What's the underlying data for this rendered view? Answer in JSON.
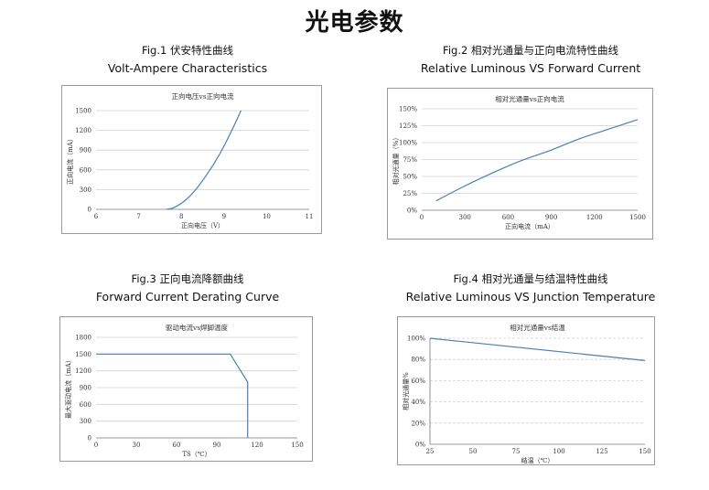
{
  "page": {
    "title": "光电参数"
  },
  "figures": [
    {
      "caption": "Fig.1  伏安特性曲线",
      "subtitle": "Volt-Ampere Characteristics"
    },
    {
      "caption": "Fig.2  相对光通量与正向电流特性曲线",
      "subtitle": "Relative Luminous VS Forward Current"
    },
    {
      "caption": "Fig.3  正向电流降额曲线",
      "subtitle": "Forward Current Derating Curve"
    },
    {
      "caption": "Fig.4  相对光通量与结温特性曲线",
      "subtitle": "Relative Luminous VS Junction Temperature"
    }
  ],
  "colors": {
    "series": "#4a7fb5",
    "grid": "#d0d0d0",
    "axis": "#777777",
    "frame": "#9a9a9a"
  },
  "chart_data": [
    {
      "type": "line",
      "title": "正向电压vs正向电流",
      "xlabel": "正向电压（V）",
      "ylabel": "正向电流（mA）",
      "xlim": [
        6,
        11
      ],
      "ylim": [
        0,
        1500
      ],
      "x_ticks": [
        6,
        7,
        8,
        9,
        10,
        11
      ],
      "y_ticks": [
        0,
        300,
        600,
        900,
        1200,
        1500
      ],
      "grid": "horizontal",
      "series": [
        {
          "x": [
            7.65,
            7.8,
            8.0,
            8.2,
            8.4,
            8.6,
            8.8,
            9.0,
            9.2,
            9.4
          ],
          "y": [
            0,
            20,
            90,
            200,
            350,
            530,
            730,
            960,
            1220,
            1500
          ]
        }
      ]
    },
    {
      "type": "line",
      "title": "相对光通量vs正向电流",
      "xlabel": "正向电流（mA）",
      "ylabel": "相对光通量（%）",
      "xlim": [
        0,
        1500
      ],
      "ylim": [
        0,
        150
      ],
      "x_ticks": [
        "0",
        "300",
        "600",
        "900",
        "1200",
        "1500"
      ],
      "y_ticks": [
        "0%",
        "25%",
        "50%",
        "75%",
        "100%",
        "125%",
        "150%"
      ],
      "grid": "horizontal",
      "series": [
        {
          "x": [
            100,
            300,
            500,
            700,
            900,
            1100,
            1300,
            1500
          ],
          "y": [
            14,
            36,
            56,
            74,
            89,
            106,
            120,
            134
          ]
        }
      ]
    },
    {
      "type": "line",
      "title": "驱动电流vs焊脚温度",
      "xlabel": "TS（℃）",
      "ylabel": "最大驱动电流（mA）",
      "xlim": [
        0,
        150
      ],
      "ylim": [
        0,
        1800
      ],
      "x_ticks": [
        0,
        30,
        60,
        90,
        120,
        150
      ],
      "y_ticks": [
        0,
        300,
        600,
        900,
        1200,
        1500,
        1800
      ],
      "grid": "horizontal",
      "series": [
        {
          "x": [
            0,
            100,
            113,
            113
          ],
          "y": [
            1500,
            1500,
            1000,
            0
          ]
        }
      ]
    },
    {
      "type": "line",
      "title": "相对光通量vs结温",
      "xlabel": "结温（℃）",
      "ylabel": "相对光通量%",
      "xlim": [
        25,
        150
      ],
      "ylim": [
        0,
        100
      ],
      "x_ticks": [
        25,
        50,
        75,
        100,
        125,
        150
      ],
      "y_ticks": [
        "0%",
        "20%",
        "40%",
        "60%",
        "80%",
        "100%"
      ],
      "grid": "horizontal-dashed",
      "series": [
        {
          "x": [
            25,
            150
          ],
          "y": [
            100,
            79
          ]
        }
      ]
    }
  ]
}
